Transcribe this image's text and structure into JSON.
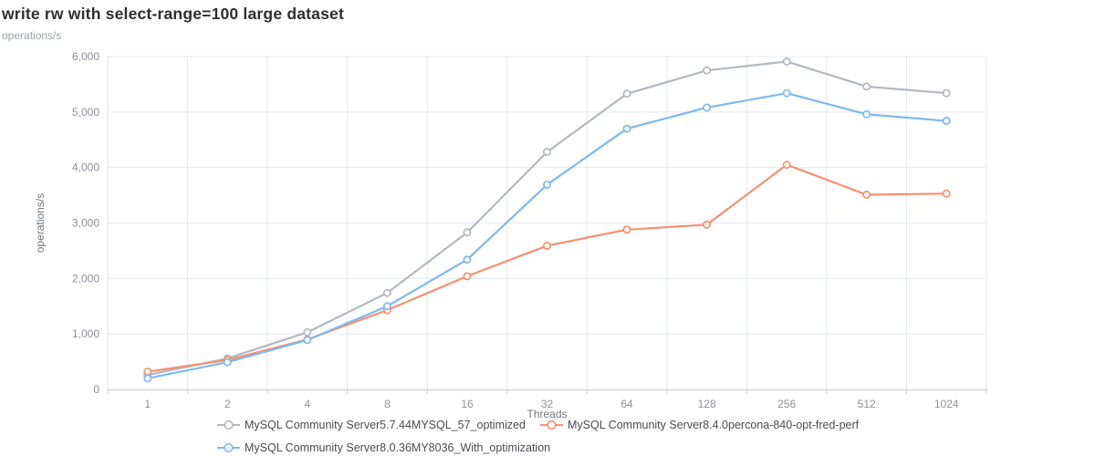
{
  "header": {
    "title": "write rw with select-range=100 large dataset",
    "subtitle": "operations/s"
  },
  "chart_data": {
    "type": "line",
    "title": "write rw with select-range=100 large dataset",
    "xlabel": "Threads",
    "ylabel": "operations/s",
    "categories": [
      "1",
      "2",
      "4",
      "8",
      "16",
      "32",
      "64",
      "128",
      "256",
      "512",
      "1024"
    ],
    "ylim": [
      0,
      6000
    ],
    "ytick_interval": 1000,
    "grid": true,
    "legend_position": "bottom",
    "marker": "hollow-circle",
    "colors": {
      "axis_line": "#cccccc",
      "grid_line": "#e4e9f1",
      "tick_label": "#8d919b",
      "axis_name": "#73777e",
      "legend_text": "#4a4c52"
    },
    "series": [
      {
        "name": "MySQL Community Server5.7.44MYSQL_57_optimized",
        "color": "#b3b8c2",
        "values": [
          260,
          560,
          1030,
          1740,
          2830,
          4280,
          5330,
          5750,
          5910,
          5460,
          5340
        ]
      },
      {
        "name": "MySQL Community Server8.4.0percona-840-opt-fred-perf",
        "color": "#f6906f",
        "values": [
          320,
          530,
          900,
          1430,
          2040,
          2590,
          2880,
          2970,
          4050,
          3510,
          3530
        ]
      },
      {
        "name": "MySQL Community Server8.0.36MY8036_With_optimization",
        "color": "#7eb9f0",
        "values": [
          200,
          490,
          890,
          1500,
          2340,
          3690,
          4700,
          5080,
          5340,
          4960,
          4840
        ]
      }
    ]
  }
}
